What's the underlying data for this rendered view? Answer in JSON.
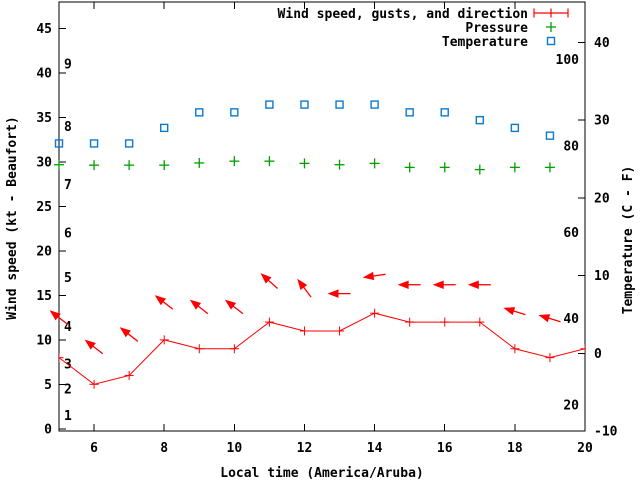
{
  "chart_data": {
    "type": "line",
    "title": "",
    "xlabel": "Local time (America/Aruba)",
    "ylabel_left": "Wind speed (kt - Beaufort)",
    "ylabel_right": "Temperature (C - F)",
    "x_range": [
      5,
      20
    ],
    "x_ticks": [
      6,
      8,
      10,
      12,
      14,
      16,
      18,
      20
    ],
    "left_axis": {
      "unit": "kt",
      "ticks": [
        0,
        5,
        10,
        15,
        20,
        25,
        30,
        35,
        40,
        45
      ],
      "range": [
        -0.25,
        48
      ],
      "beaufort_labels": [
        {
          "label": "1",
          "kt": 1.5
        },
        {
          "label": "2",
          "kt": 4.5
        },
        {
          "label": "3",
          "kt": 7.3
        },
        {
          "label": "4",
          "kt": 11.5
        },
        {
          "label": "5",
          "kt": 17
        },
        {
          "label": "6",
          "kt": 22
        },
        {
          "label": "7",
          "kt": 27.5
        },
        {
          "label": "8",
          "kt": 34
        },
        {
          "label": "9",
          "kt": 41
        }
      ]
    },
    "right_axis": {
      "unit": "C",
      "ticks_c": [
        -10,
        0,
        10,
        20,
        30,
        40
      ],
      "range": [
        -10,
        45.2
      ],
      "fahrenheit_labels": [
        20,
        40,
        60,
        80,
        100
      ]
    },
    "series": [
      {
        "name": "Wind speed, gusts, and direction",
        "marker": "line-with-cross-errorbar",
        "color": "#ff0000",
        "axis": "left",
        "x": [
          5,
          6,
          7,
          8,
          9,
          10,
          11,
          12,
          13,
          14,
          15,
          16,
          17,
          18,
          19,
          20
        ],
        "values": [
          8,
          5,
          6,
          10,
          9,
          9,
          12,
          11,
          11,
          13,
          12,
          12,
          12,
          9,
          8,
          9
        ]
      },
      {
        "name": "Pressure",
        "marker": "plus",
        "color": "#00a000",
        "axis": "left",
        "x": [
          5,
          6,
          7,
          8,
          9,
          10,
          11,
          12,
          13,
          14,
          15,
          16,
          17,
          18,
          19
        ],
        "values": [
          29.7,
          29.65,
          29.65,
          29.65,
          29.9,
          30.1,
          30.1,
          29.85,
          29.7,
          29.85,
          29.4,
          29.4,
          29.15,
          29.4,
          29.4
        ]
      },
      {
        "name": "Temperature",
        "marker": "open-square",
        "color": "#0a7ad2",
        "axis": "right",
        "x": [
          5,
          6,
          7,
          8,
          9,
          10,
          11,
          12,
          13,
          14,
          15,
          16,
          17,
          18,
          19
        ],
        "values": [
          27,
          27,
          27,
          29,
          31,
          31,
          32,
          32,
          32,
          32,
          31,
          31,
          30,
          29,
          28
        ]
      }
    ],
    "wind_arrows": [
      {
        "x": 5,
        "kt": 12.5,
        "angle_deg": 142
      },
      {
        "x": 6,
        "kt": 9.2,
        "angle_deg": 142
      },
      {
        "x": 7,
        "kt": 10.6,
        "angle_deg": 142
      },
      {
        "x": 8,
        "kt": 14.2,
        "angle_deg": 142
      },
      {
        "x": 9,
        "kt": 13.7,
        "angle_deg": 142
      },
      {
        "x": 10,
        "kt": 13.7,
        "angle_deg": 142
      },
      {
        "x": 11,
        "kt": 16.6,
        "angle_deg": 138
      },
      {
        "x": 12,
        "kt": 15.8,
        "angle_deg": 127
      },
      {
        "x": 13,
        "kt": 15.2,
        "angle_deg": 180
      },
      {
        "x": 14,
        "kt": 17.2,
        "angle_deg": 188
      },
      {
        "x": 15,
        "kt": 16.2,
        "angle_deg": 180
      },
      {
        "x": 16,
        "kt": 16.2,
        "angle_deg": 180
      },
      {
        "x": 17,
        "kt": 16.2,
        "angle_deg": 180
      },
      {
        "x": 18,
        "kt": 13.2,
        "angle_deg": 163
      },
      {
        "x": 19,
        "kt": 12.4,
        "angle_deg": 163
      }
    ],
    "legend": {
      "position": "top-right-inside",
      "items": [
        "Wind speed, gusts, and direction",
        "Pressure",
        "Temperature"
      ]
    },
    "grid": false,
    "colors": {
      "wind": "#ff0000",
      "pressure": "#00a000",
      "temperature": "#0a7ad2",
      "axis": "#000000",
      "background": "#ffffff"
    }
  }
}
